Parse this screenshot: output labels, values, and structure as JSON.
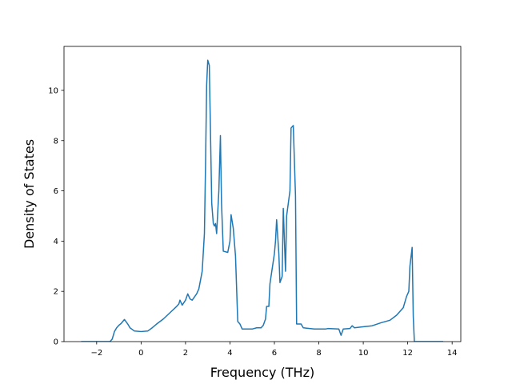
{
  "chart_data": {
    "type": "line",
    "xlabel": "Frequency (THz)",
    "ylabel": "Density of States",
    "color": "#1f77b4",
    "x": [
      -2.7,
      -1.4,
      -1.3,
      -1.2,
      -1.1,
      -1.0,
      -0.9,
      -0.75,
      -0.6,
      -0.5,
      -0.3,
      0,
      0.3,
      0.5,
      0.7,
      1.0,
      1.3,
      1.6,
      1.7,
      1.75,
      1.85,
      2.0,
      2.1,
      2.2,
      2.3,
      2.5,
      2.6,
      2.75,
      2.85,
      2.9,
      2.95,
      3.0,
      3.07,
      3.13,
      3.18,
      3.25,
      3.3,
      3.35,
      3.4,
      3.5,
      3.57,
      3.62,
      3.7,
      3.9,
      4.0,
      4.05,
      4.15,
      4.25,
      4.35,
      4.45,
      4.55,
      5.0,
      5.2,
      5.4,
      5.5,
      5.6,
      5.65,
      5.75,
      5.8,
      6.0,
      6.05,
      6.1,
      6.2,
      6.25,
      6.35,
      6.4,
      6.5,
      6.55,
      6.7,
      6.75,
      6.85,
      6.95,
      7.0,
      7.2,
      7.3,
      7.8,
      8.3,
      8.4,
      8.9,
      9.0,
      9.1,
      9.4,
      9.5,
      9.6,
      9.9,
      10.4,
      10.8,
      11.2,
      11.5,
      11.8,
      11.95,
      12.05,
      12.1,
      12.2,
      12.25,
      12.3,
      13.6
    ],
    "values": [
      0,
      0,
      0.1,
      0.4,
      0.55,
      0.65,
      0.72,
      0.88,
      0.7,
      0.55,
      0.42,
      0.4,
      0.42,
      0.55,
      0.7,
      0.9,
      1.15,
      1.4,
      1.5,
      1.65,
      1.45,
      1.65,
      1.9,
      1.7,
      1.65,
      1.9,
      2.1,
      2.8,
      4.3,
      7.0,
      10.2,
      11.2,
      11.0,
      8.0,
      5.5,
      4.7,
      4.6,
      4.7,
      4.3,
      6.0,
      8.2,
      5.5,
      3.6,
      3.55,
      4.0,
      5.05,
      4.5,
      3.4,
      0.8,
      0.7,
      0.5,
      0.5,
      0.55,
      0.55,
      0.65,
      0.9,
      1.4,
      1.4,
      2.3,
      3.5,
      4.0,
      4.85,
      3.5,
      2.35,
      2.6,
      5.3,
      2.8,
      5.0,
      6.0,
      8.5,
      8.6,
      5.8,
      0.7,
      0.7,
      0.55,
      0.5,
      0.5,
      0.52,
      0.5,
      0.25,
      0.5,
      0.52,
      0.63,
      0.55,
      0.58,
      0.63,
      0.75,
      0.85,
      1.05,
      1.35,
      1.8,
      2.0,
      3.0,
      3.75,
      1.0,
      0,
      0
    ],
    "xlim": [
      -3.47,
      14.39
    ],
    "xticks": [
      {
        "value": -2,
        "label": "−2"
      },
      0,
      2,
      4,
      6,
      8,
      10,
      12,
      14
    ],
    "ylim": [
      0,
      11.75
    ],
    "yticks": [
      0,
      2,
      4,
      6,
      8,
      10
    ]
  }
}
